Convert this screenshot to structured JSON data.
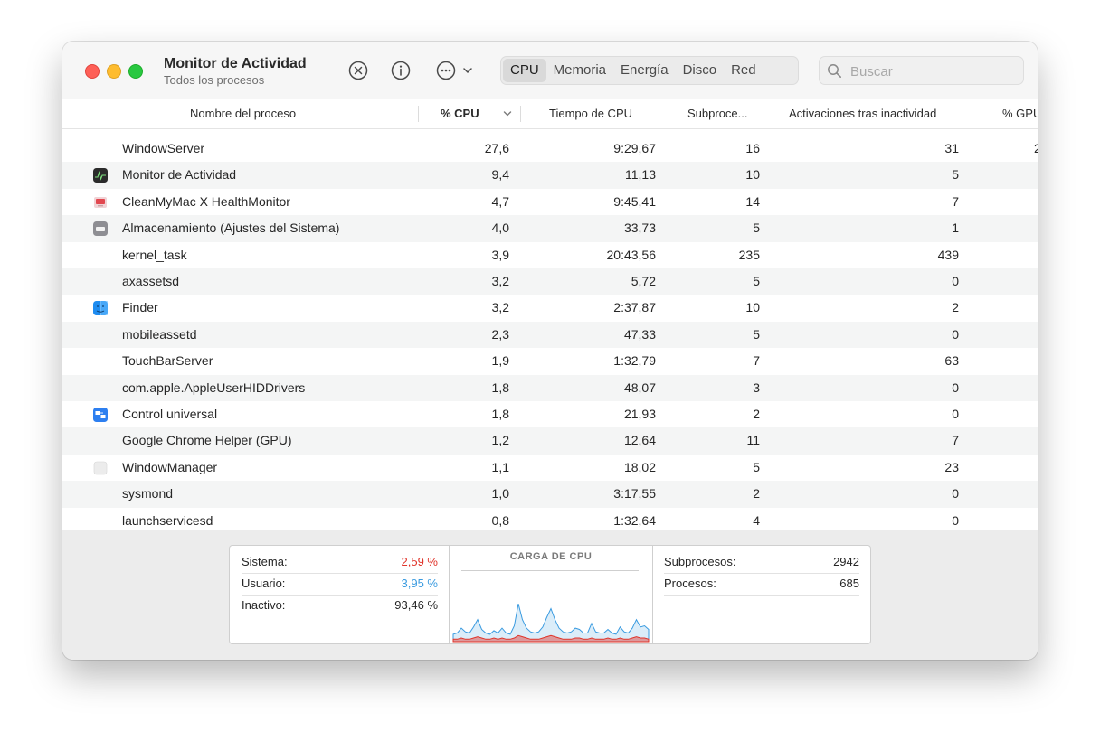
{
  "window": {
    "title": "Monitor de Actividad",
    "subtitle": "Todos los procesos"
  },
  "toolbar": {
    "icons": [
      "stop-process-icon",
      "info-icon",
      "more-options-icon"
    ],
    "tabs": [
      {
        "label": "CPU",
        "active": true
      },
      {
        "label": "Memoria",
        "active": false
      },
      {
        "label": "Energía",
        "active": false
      },
      {
        "label": "Disco",
        "active": false
      },
      {
        "label": "Red",
        "active": false
      }
    ],
    "search_placeholder": "Buscar"
  },
  "table": {
    "columns": [
      "Nombre del proceso",
      "% CPU",
      "Tiempo de CPU",
      "Subproce...",
      "Activaciones tras inactividad",
      "% GPU"
    ],
    "sort_column": "% CPU",
    "rows": [
      {
        "name": "WindowServer",
        "icon": "",
        "cpu": "27,6",
        "time": "9:29,67",
        "threads": "16",
        "wakeups": "31",
        "gpu": "2"
      },
      {
        "name": "Monitor de Actividad",
        "icon": "activity-monitor-icon",
        "cpu": "9,4",
        "time": "11,13",
        "threads": "10",
        "wakeups": "5",
        "gpu": ""
      },
      {
        "name": "CleanMyMac X HealthMonitor",
        "icon": "cleanmymac-icon",
        "cpu": "4,7",
        "time": "9:45,41",
        "threads": "14",
        "wakeups": "7",
        "gpu": ""
      },
      {
        "name": "Almacenamiento (Ajustes del Sistema)",
        "icon": "storage-icon",
        "cpu": "4,0",
        "time": "33,73",
        "threads": "5",
        "wakeups": "1",
        "gpu": ""
      },
      {
        "name": "kernel_task",
        "icon": "",
        "cpu": "3,9",
        "time": "20:43,56",
        "threads": "235",
        "wakeups": "439",
        "gpu": ""
      },
      {
        "name": "axassetsd",
        "icon": "",
        "cpu": "3,2",
        "time": "5,72",
        "threads": "5",
        "wakeups": "0",
        "gpu": ""
      },
      {
        "name": "Finder",
        "icon": "finder-icon",
        "cpu": "3,2",
        "time": "2:37,87",
        "threads": "10",
        "wakeups": "2",
        "gpu": ""
      },
      {
        "name": "mobileassetd",
        "icon": "",
        "cpu": "2,3",
        "time": "47,33",
        "threads": "5",
        "wakeups": "0",
        "gpu": ""
      },
      {
        "name": "TouchBarServer",
        "icon": "",
        "cpu": "1,9",
        "time": "1:32,79",
        "threads": "7",
        "wakeups": "63",
        "gpu": ""
      },
      {
        "name": "com.apple.AppleUserHIDDrivers",
        "icon": "",
        "cpu": "1,8",
        "time": "48,07",
        "threads": "3",
        "wakeups": "0",
        "gpu": ""
      },
      {
        "name": "Control universal",
        "icon": "universal-control-icon",
        "cpu": "1,8",
        "time": "21,93",
        "threads": "2",
        "wakeups": "0",
        "gpu": ""
      },
      {
        "name": "Google Chrome Helper (GPU)",
        "icon": "",
        "cpu": "1,2",
        "time": "12,64",
        "threads": "11",
        "wakeups": "7",
        "gpu": ""
      },
      {
        "name": "WindowManager",
        "icon": "window-manager-icon",
        "cpu": "1,1",
        "time": "18,02",
        "threads": "5",
        "wakeups": "23",
        "gpu": ""
      },
      {
        "name": "sysmond",
        "icon": "",
        "cpu": "1,0",
        "time": "3:17,55",
        "threads": "2",
        "wakeups": "0",
        "gpu": ""
      },
      {
        "name": "launchservicesd",
        "icon": "",
        "cpu": "0,8",
        "time": "1:32,64",
        "threads": "4",
        "wakeups": "0",
        "gpu": ""
      }
    ]
  },
  "summary": {
    "left": [
      {
        "label": "Sistema:",
        "value": "2,59 %",
        "color": "#e0342a"
      },
      {
        "label": "Usuario:",
        "value": "3,95 %",
        "color": "#3a9be0"
      },
      {
        "label": "Inactivo:",
        "value": "93,46 %",
        "color": "#262626"
      }
    ],
    "chart_title": "CARGA DE CPU",
    "right": [
      {
        "label": "Subprocesos:",
        "value": "2942"
      },
      {
        "label": "Procesos:",
        "value": "685"
      }
    ]
  },
  "cpu_load_chart": {
    "series_colors": {
      "system": "#e0342a",
      "user": "#3a9be0"
    },
    "system_percent": [
      2,
      2,
      3,
      2,
      2,
      3,
      4,
      3,
      2,
      2,
      3,
      2,
      3,
      2,
      2,
      3,
      5,
      4,
      3,
      2,
      2,
      2,
      3,
      4,
      5,
      4,
      3,
      2,
      2,
      2,
      3,
      3,
      2,
      2,
      3,
      2,
      2,
      2,
      3,
      2,
      2,
      3,
      2,
      2,
      3,
      4,
      3,
      3,
      2
    ],
    "user_percent": [
      4,
      5,
      8,
      6,
      5,
      9,
      14,
      7,
      5,
      4,
      6,
      5,
      8,
      5,
      4,
      10,
      26,
      14,
      8,
      6,
      5,
      6,
      9,
      16,
      22,
      14,
      8,
      6,
      5,
      6,
      8,
      7,
      5,
      5,
      12,
      6,
      5,
      5,
      7,
      5,
      4,
      9,
      6,
      5,
      8,
      14,
      9,
      10,
      8
    ]
  }
}
